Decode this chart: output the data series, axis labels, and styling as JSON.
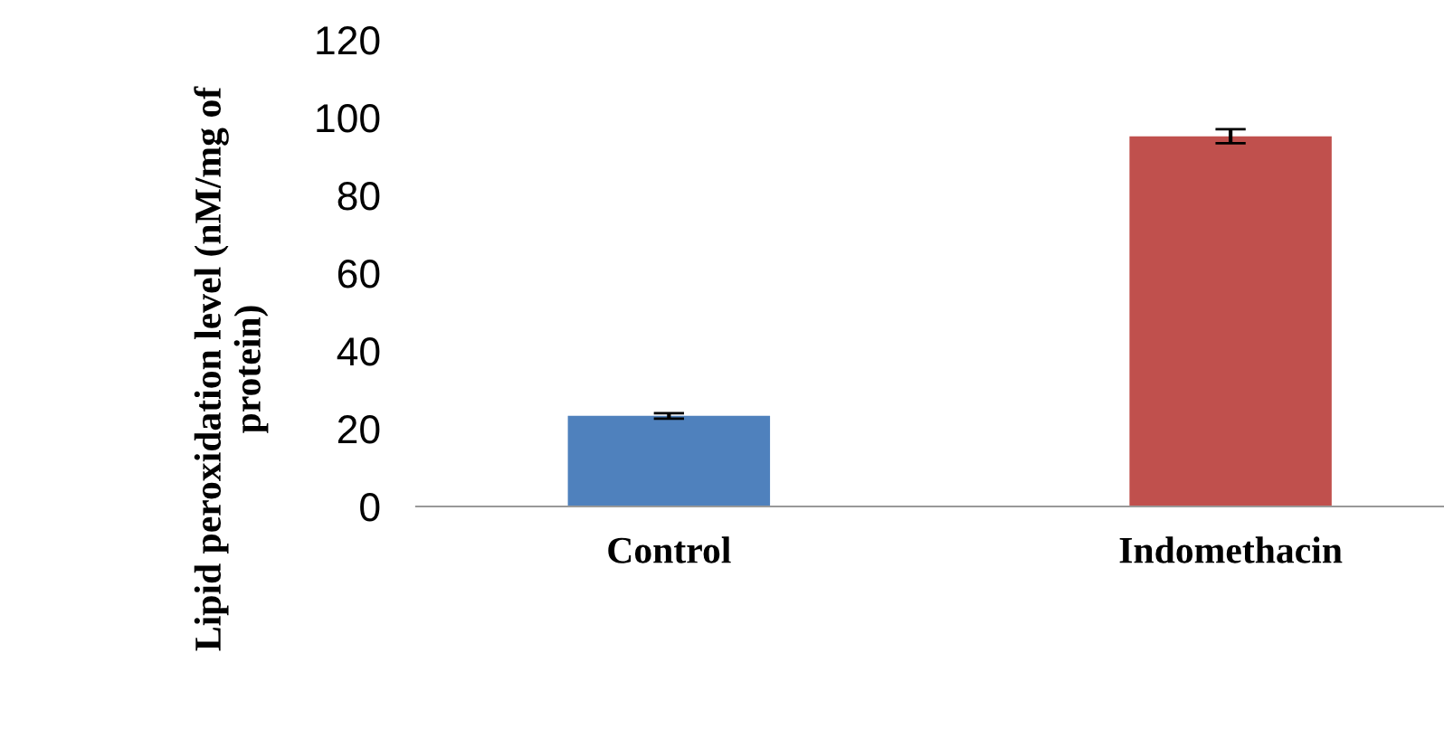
{
  "chart_data": {
    "type": "bar",
    "ylabel": "Lipid peroxidation level (nM/mg of\nprotein)",
    "categories": [
      "Control",
      "Indomethacin"
    ],
    "values": [
      23.3,
      95.2
    ],
    "colors": [
      "#4f81bd",
      "#c0504d"
    ],
    "errors": [
      0.7,
      1.8
    ],
    "ylim": [
      0,
      120
    ],
    "yticks": [
      0,
      20,
      40,
      60,
      80,
      100,
      120
    ],
    "grid": false,
    "legend": false
  }
}
